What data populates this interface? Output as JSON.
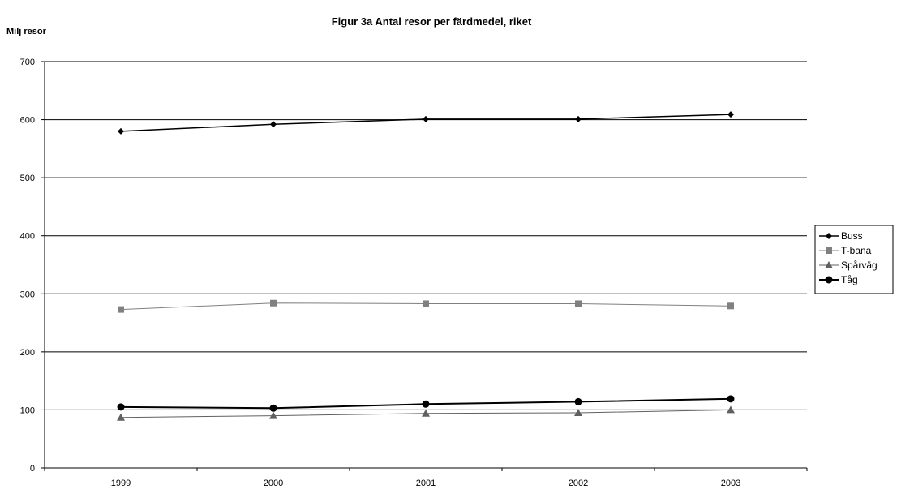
{
  "chart_data": {
    "type": "line",
    "title": "Figur 3a Antal resor per färdmedel, riket",
    "ylabel": "Milj resor",
    "xlabel": "",
    "categories": [
      "1999",
      "2000",
      "2001",
      "2002",
      "2003"
    ],
    "ylim": [
      0,
      700
    ],
    "yticks": [
      0,
      100,
      200,
      300,
      400,
      500,
      600,
      700
    ],
    "grid": true,
    "legend_position": "right",
    "series": [
      {
        "name": "Buss",
        "values": [
          580,
          592,
          601,
          601,
          609
        ],
        "color": "#000000",
        "marker": "diamond",
        "stroke_width": 1.5
      },
      {
        "name": "T-bana",
        "values": [
          273,
          284,
          283,
          283,
          279
        ],
        "color": "#808080",
        "marker": "square",
        "stroke_width": 1
      },
      {
        "name": "Spårväg",
        "values": [
          87,
          90,
          94,
          95,
          100
        ],
        "color": "#606060",
        "marker": "triangle",
        "stroke_width": 1
      },
      {
        "name": "Tåg",
        "values": [
          105,
          103,
          110,
          114,
          119
        ],
        "color": "#000000",
        "marker": "circle",
        "stroke_width": 2
      }
    ]
  }
}
